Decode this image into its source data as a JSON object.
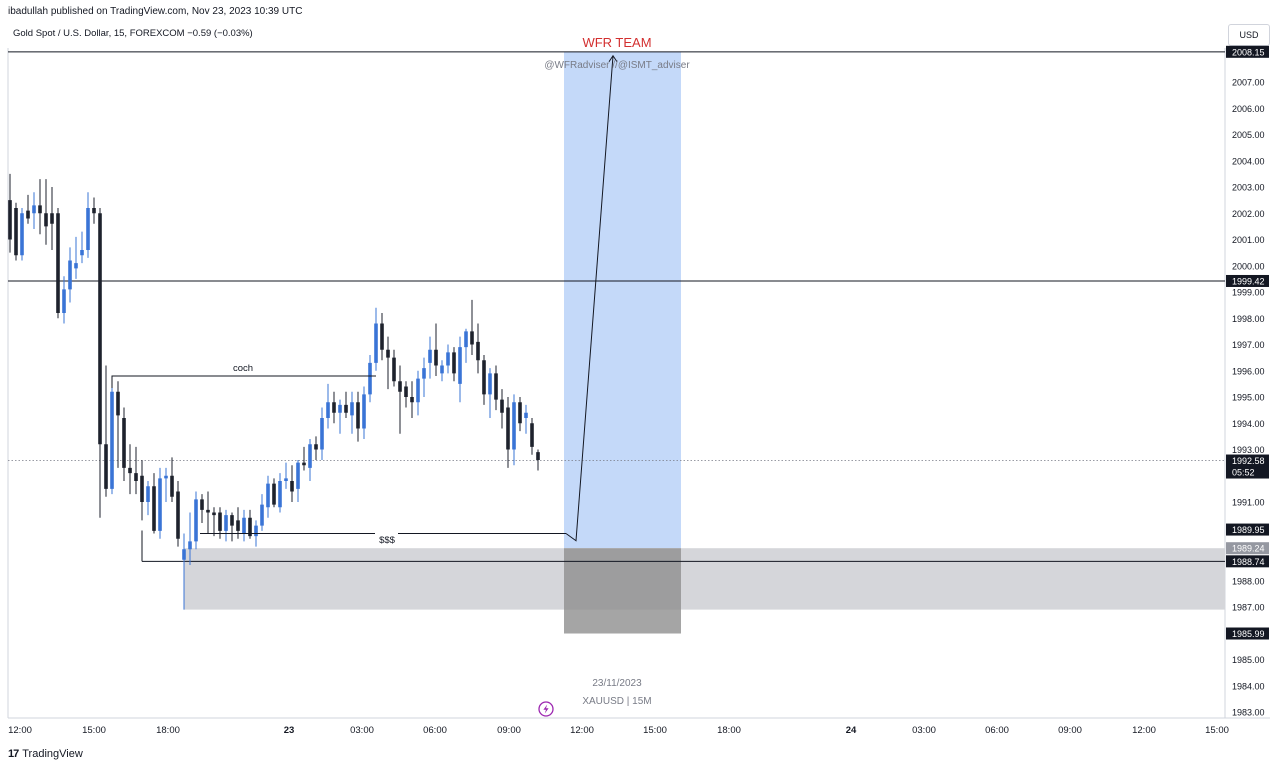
{
  "header": {
    "published": "ibadullah published on TradingView.com, Nov 23, 2023 10:39 UTC",
    "legend": "Gold Spot / U.S. Dollar, 15, FOREXCOM  −0.59 (−0.03%)",
    "currency": "USD"
  },
  "footer": {
    "brand_mark": "17",
    "brand_name": "TradingView"
  },
  "annotations": {
    "team": "WFR TEAM",
    "handles": "@WFRadviser  //@ISMT_adviser",
    "choch": "coch",
    "sss": "$$$",
    "date_label": "23/11/2023",
    "symbol_label": "XAUUSD | 15M"
  },
  "colors": {
    "up": "#3a74d6",
    "down": "#1e222d",
    "highlight": "#c4d9f9",
    "zone": "#d5d6da",
    "zone_dark": "#8f8f8f",
    "accent_red": "#d32f2f"
  },
  "chart_data": {
    "type": "candlestick",
    "title": "Gold Spot / U.S. Dollar, 15, FOREXCOM",
    "ylim": [
      1982.8,
      2009.2
    ],
    "y_ticks": [
      1983,
      1984,
      1985,
      1987,
      1988,
      1990,
      1991,
      1993,
      1994,
      1995,
      1996,
      1997,
      1998,
      1999,
      2000,
      2001,
      2002,
      2003,
      2004,
      2005,
      2006,
      2007
    ],
    "x_ticks": [
      "12:00",
      "15:00",
      "18:00",
      "23",
      "03:00",
      "06:00",
      "09:00",
      "12:00",
      "15:00",
      "18:00",
      "24",
      "03:00",
      "06:00",
      "09:00",
      "12:00",
      "15:00"
    ],
    "price_labels": [
      {
        "value": 2008.15,
        "style": "dark"
      },
      {
        "value": 1999.42,
        "style": "dark"
      },
      {
        "value": 1992.58,
        "style": "dark",
        "sub": "05:52"
      },
      {
        "value": 1989.95,
        "style": "dark"
      },
      {
        "value": 1989.24,
        "style": "grey"
      },
      {
        "value": 1988.74,
        "style": "dark"
      },
      {
        "value": 1985.99,
        "style": "dark"
      }
    ],
    "horizontal_lines": [
      2008.15,
      1999.42,
      1988.74
    ],
    "current_price": 1992.58,
    "zone": {
      "top": 1989.24,
      "bottom": 1986.9
    },
    "choch_level": 1995.8,
    "sss_level": 1989.8,
    "projection": {
      "from": 1989.6,
      "to": 2008.0
    },
    "candles": [
      [
        2002.5,
        2003.5,
        2000.5,
        2001.0
      ],
      [
        2002.2,
        2002.4,
        2000.2,
        2000.4
      ],
      [
        2000.4,
        2002.2,
        2000.2,
        2002.0
      ],
      [
        2002.1,
        2002.7,
        2001.6,
        2001.8
      ],
      [
        2002.0,
        2002.8,
        2001.4,
        2002.3
      ],
      [
        2002.3,
        2003.3,
        2001.2,
        2002.0
      ],
      [
        2002.0,
        2003.3,
        2000.8,
        2001.5
      ],
      [
        2002.0,
        2003.0,
        2000.6,
        2001.6
      ],
      [
        2002.0,
        2002.2,
        1998.0,
        1998.2
      ],
      [
        1998.2,
        1999.6,
        1997.8,
        1999.1
      ],
      [
        1999.1,
        2000.7,
        1998.6,
        2000.2
      ],
      [
        1999.9,
        2001.1,
        1999.5,
        2000.1
      ],
      [
        2000.4,
        2001.3,
        2000.1,
        2000.6
      ],
      [
        2000.6,
        2002.8,
        2000.3,
        2002.2
      ],
      [
        2002.2,
        2002.6,
        2001.6,
        2002.0
      ],
      [
        2002.0,
        2002.2,
        1990.4,
        1993.2
      ],
      [
        1993.2,
        1996.2,
        1991.2,
        1991.5
      ],
      [
        1991.5,
        1995.4,
        1991.3,
        1995.2
      ],
      [
        1995.2,
        1995.6,
        1992.3,
        1994.3
      ],
      [
        1994.2,
        1994.6,
        1991.8,
        1992.3
      ],
      [
        1992.3,
        1993.2,
        1991.3,
        1992.1
      ],
      [
        1992.1,
        1993.1,
        1991.3,
        1991.8
      ],
      [
        1992.0,
        1992.6,
        1990.3,
        1991.0
      ],
      [
        1991.0,
        1991.8,
        1990.5,
        1991.6
      ],
      [
        1991.6,
        1992.1,
        1989.8,
        1989.9
      ],
      [
        1989.9,
        1992.3,
        1989.6,
        1991.9
      ],
      [
        1991.9,
        1992.3,
        1991.0,
        1992.0
      ],
      [
        1992.0,
        1992.7,
        1991.0,
        1991.2
      ],
      [
        1991.4,
        1991.8,
        1989.3,
        1989.6
      ],
      [
        1988.8,
        1989.8,
        1986.9,
        1989.2
      ],
      [
        1989.2,
        1990.6,
        1988.6,
        1989.5
      ],
      [
        1989.5,
        1991.4,
        1989.2,
        1991.1
      ],
      [
        1991.1,
        1991.3,
        1990.2,
        1990.7
      ],
      [
        1990.7,
        1991.4,
        1989.8,
        1990.6
      ],
      [
        1990.6,
        1990.8,
        1989.7,
        1990.5
      ],
      [
        1990.6,
        1990.8,
        1989.6,
        1989.9
      ],
      [
        1989.9,
        1990.7,
        1989.5,
        1990.5
      ],
      [
        1990.5,
        1990.6,
        1989.5,
        1990.1
      ],
      [
        1990.3,
        1990.8,
        1989.6,
        1989.9
      ],
      [
        1989.8,
        1990.7,
        1989.5,
        1990.4
      ],
      [
        1990.4,
        1990.7,
        1989.6,
        1989.7
      ],
      [
        1989.7,
        1990.3,
        1989.3,
        1990.1
      ],
      [
        1990.1,
        1991.3,
        1989.9,
        1990.9
      ],
      [
        1990.8,
        1992.0,
        1990.4,
        1991.7
      ],
      [
        1991.7,
        1991.9,
        1990.8,
        1990.9
      ],
      [
        1990.8,
        1992.1,
        1990.6,
        1991.8
      ],
      [
        1991.8,
        1992.5,
        1991.5,
        1991.9
      ],
      [
        1991.8,
        1992.4,
        1991.0,
        1991.4
      ],
      [
        1991.5,
        1992.6,
        1991.0,
        1992.5
      ],
      [
        1992.5,
        1993.1,
        1992.2,
        1992.4
      ],
      [
        1992.3,
        1993.4,
        1991.8,
        1993.2
      ],
      [
        1993.2,
        1993.5,
        1992.6,
        1993.0
      ],
      [
        1993.0,
        1994.6,
        1992.6,
        1994.2
      ],
      [
        1994.2,
        1995.5,
        1993.8,
        1994.8
      ],
      [
        1994.8,
        1995.2,
        1994.0,
        1994.4
      ],
      [
        1994.4,
        1994.9,
        1993.6,
        1994.7
      ],
      [
        1994.7,
        1995.2,
        1994.2,
        1994.4
      ],
      [
        1994.3,
        1995.2,
        1993.6,
        1994.8
      ],
      [
        1994.8,
        1995.2,
        1993.3,
        1993.8
      ],
      [
        1993.8,
        1995.4,
        1993.4,
        1995.1
      ],
      [
        1995.1,
        1996.6,
        1994.8,
        1996.3
      ],
      [
        1996.3,
        1998.4,
        1996.0,
        1997.8
      ],
      [
        1997.8,
        1998.2,
        1996.4,
        1996.8
      ],
      [
        1996.8,
        1997.3,
        1995.3,
        1996.5
      ],
      [
        1996.5,
        1996.8,
        1995.4,
        1995.6
      ],
      [
        1995.6,
        1996.2,
        1993.6,
        1995.2
      ],
      [
        1995.4,
        1995.6,
        1994.6,
        1995.0
      ],
      [
        1995.0,
        1995.6,
        1994.2,
        1994.8
      ],
      [
        1994.8,
        1996.0,
        1994.3,
        1995.7
      ],
      [
        1995.7,
        1996.5,
        1995.0,
        1996.1
      ],
      [
        1996.3,
        1997.3,
        1995.7,
        1996.8
      ],
      [
        1996.8,
        1997.8,
        1995.8,
        1996.2
      ],
      [
        1995.9,
        1996.4,
        1995.6,
        1996.2
      ],
      [
        1996.2,
        1997.0,
        1995.9,
        1996.7
      ],
      [
        1996.7,
        1996.9,
        1995.6,
        1995.9
      ],
      [
        1995.5,
        1997.3,
        1994.8,
        1996.9
      ],
      [
        1996.9,
        1997.6,
        1996.3,
        1997.5
      ],
      [
        1997.5,
        1998.7,
        1996.6,
        1997.0
      ],
      [
        1997.1,
        1997.8,
        1995.9,
        1996.4
      ],
      [
        1996.4,
        1996.6,
        1994.7,
        1995.1
      ],
      [
        1995.1,
        1996.1,
        1994.2,
        1995.9
      ],
      [
        1995.9,
        1996.2,
        1994.5,
        1994.9
      ],
      [
        1994.9,
        1995.3,
        1993.8,
        1994.4
      ],
      [
        1994.6,
        1995.0,
        1992.3,
        1993.0
      ],
      [
        1993.0,
        1995.1,
        1992.4,
        1994.8
      ],
      [
        1994.8,
        1995.0,
        1993.7,
        1994.0
      ],
      [
        1994.2,
        1994.7,
        1993.6,
        1994.4
      ],
      [
        1994.0,
        1994.2,
        1992.8,
        1993.1
      ],
      [
        1992.9,
        1993.0,
        1992.2,
        1992.6
      ]
    ]
  }
}
